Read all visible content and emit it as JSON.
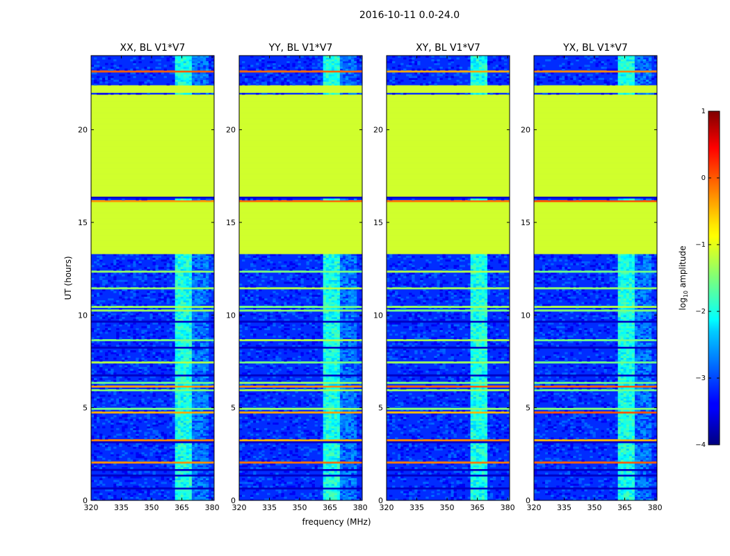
{
  "chart_data": {
    "type": "heatmap",
    "suptitle": "2016-10-11 0.0-24.0",
    "xlabel": "frequency (MHz)",
    "ylabel": "UT (hours)",
    "xlim": [
      320,
      381
    ],
    "ylim": [
      0,
      24
    ],
    "xticks": [
      "320",
      "335",
      "350",
      "365",
      "380"
    ],
    "yticks": [
      "0",
      "5",
      "10",
      "15",
      "20"
    ],
    "panels": [
      {
        "title": "XX, BL V1*V7"
      },
      {
        "title": "YY, BL V1*V7"
      },
      {
        "title": "XY, BL V1*V7"
      },
      {
        "title": "YX, BL V1*V7"
      }
    ],
    "flagged_ut_ranges_hours": [
      [
        13.3,
        16.0
      ],
      [
        16.35,
        21.8
      ],
      [
        22.0,
        22.3
      ]
    ],
    "rfi_band_mhz": [
      362,
      370
    ],
    "background_log10_amplitude": -3.2,
    "flag_fill_log10_amplitude": -1.1,
    "colorbar": {
      "label": "log10 amplitude",
      "range": [
        -4,
        1
      ],
      "ticks": [
        "1",
        "0",
        "−1",
        "−2",
        "−3",
        "−4"
      ],
      "cmap": "jet"
    }
  }
}
